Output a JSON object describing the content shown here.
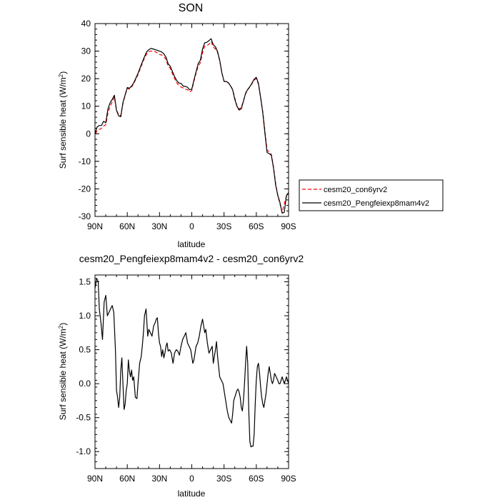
{
  "chart_data": [
    {
      "type": "line",
      "title": "SON",
      "xlabel": "latitude",
      "ylabel": "Surf sensible heat (W/m",
      "ylabel_sup": "2",
      "ylabel_close": ")",
      "xlim": [
        90,
        -90
      ],
      "ylim": [
        -30,
        40
      ],
      "x_ticks": [
        {
          "value": 90,
          "label": "90N"
        },
        {
          "value": 60,
          "label": "60N"
        },
        {
          "value": 30,
          "label": "30N"
        },
        {
          "value": 0,
          "label": "0"
        },
        {
          "value": -30,
          "label": "30S"
        },
        {
          "value": -60,
          "label": "60S"
        },
        {
          "value": -90,
          "label": "90S"
        }
      ],
      "y_ticks": [
        -30,
        -20,
        -10,
        0,
        10,
        20,
        30,
        40
      ],
      "legend": "right",
      "grid": false,
      "series": [
        {
          "name": "cesm20_con6yrv2",
          "color": "#ff0000",
          "dash": "dashed",
          "x": [
            90,
            88,
            86,
            84,
            82,
            80,
            78,
            76,
            74,
            72,
            70,
            68,
            66,
            64,
            62,
            60,
            58,
            56,
            54,
            52,
            50,
            48,
            46,
            44,
            42,
            40,
            38,
            36,
            34,
            32,
            30,
            28,
            26,
            24,
            22,
            20,
            18,
            16,
            14,
            12,
            10,
            8,
            6,
            4,
            2,
            0,
            -2,
            -4,
            -6,
            -8,
            -10,
            -12,
            -14,
            -16,
            -18,
            -20,
            -22,
            -24,
            -26,
            -28,
            -30,
            -32,
            -34,
            -36,
            -38,
            -40,
            -42,
            -44,
            -46,
            -48,
            -50,
            -52,
            -54,
            -56,
            -58,
            -60,
            -62,
            -64,
            -66,
            -68,
            -70,
            -72,
            -74,
            -76,
            -78,
            -80,
            -82,
            -84,
            -86,
            -88,
            -90
          ],
          "y": [
            0.0,
            1.0,
            1.6,
            2.0,
            2.8,
            3.3,
            7.5,
            10.0,
            11.5,
            13.3,
            8.5,
            7.0,
            6.5,
            11.0,
            14.0,
            16.5,
            16.2,
            17.0,
            18.2,
            19.8,
            21.5,
            23.5,
            25.5,
            27.5,
            29.0,
            29.8,
            30.0,
            30.1,
            29.8,
            29.3,
            28.8,
            28.6,
            28.0,
            27.0,
            24.5,
            23.8,
            21.8,
            20.0,
            18.5,
            17.5,
            17.0,
            16.6,
            16.2,
            16.0,
            15.2,
            15.7,
            19.0,
            22.0,
            24.5,
            25.8,
            29.5,
            31.8,
            32.0,
            32.5,
            33.5,
            31.5,
            30.8,
            29.5,
            26.5,
            22.0,
            19.0,
            18.7,
            18.5,
            17.5,
            16.0,
            13.0,
            10.2,
            9.0,
            9.5,
            12.0,
            14.5,
            16.0,
            17.0,
            18.2,
            19.5,
            20.0,
            18.0,
            13.0,
            8.0,
            1.0,
            -6.0,
            -6.5,
            -7.5,
            -12.0,
            -18.0,
            -22.5,
            -25.5,
            -28.5,
            -25.5,
            -22.5,
            -21.5
          ]
        },
        {
          "name": "cesm20_Pengfeiexp8mam4v2",
          "color": "#000000",
          "dash": "solid",
          "x": [
            90,
            88,
            86,
            84,
            82,
            80,
            78,
            76,
            74,
            72,
            70,
            68,
            66,
            64,
            62,
            60,
            58,
            56,
            54,
            52,
            50,
            48,
            46,
            44,
            42,
            40,
            38,
            36,
            34,
            32,
            30,
            28,
            26,
            24,
            22,
            20,
            18,
            16,
            14,
            12,
            10,
            8,
            6,
            4,
            2,
            0,
            -2,
            -4,
            -6,
            -8,
            -10,
            -12,
            -14,
            -16,
            -18,
            -20,
            -22,
            -24,
            -26,
            -28,
            -30,
            -32,
            -34,
            -36,
            -38,
            -40,
            -42,
            -44,
            -46,
            -48,
            -50,
            -52,
            -54,
            -56,
            -58,
            -60,
            -62,
            -64,
            -66,
            -68,
            -70,
            -72,
            -74,
            -76,
            -78,
            -80,
            -82,
            -84,
            -86,
            -88,
            -90
          ],
          "y": [
            0.0,
            2.5,
            3.0,
            3.0,
            4.5,
            4.0,
            9.0,
            11.2,
            12.5,
            14.0,
            8.5,
            6.5,
            6.2,
            11.3,
            14.1,
            16.8,
            16.5,
            17.3,
            18.5,
            20.2,
            21.9,
            24.0,
            26.0,
            28.0,
            29.7,
            30.5,
            31.0,
            30.8,
            30.5,
            30.3,
            30.0,
            29.7,
            29.0,
            27.8,
            25.4,
            24.5,
            22.6,
            20.8,
            19.3,
            18.4,
            18.3,
            17.3,
            17.2,
            16.9,
            16.0,
            16.2,
            19.5,
            22.5,
            25.5,
            26.7,
            30.8,
            33.0,
            33.2,
            33.8,
            34.5,
            32.3,
            31.6,
            29.8,
            26.7,
            22.0,
            19.0,
            19.0,
            18.5,
            17.4,
            16.0,
            12.5,
            10.0,
            8.6,
            9.1,
            11.8,
            14.7,
            16.1,
            17.1,
            18.4,
            19.8,
            20.5,
            18.3,
            13.2,
            7.6,
            0.2,
            -6.8,
            -7.2,
            -7.8,
            -12.4,
            -18.6,
            -22.3,
            -25.0,
            -28.8,
            -28.5,
            -22.5,
            -21.3
          ]
        }
      ]
    },
    {
      "type": "line",
      "title": "cesm20_Pengfeiexp8mam4v2 - cesm20_con6yrv2",
      "xlabel": "latitude",
      "ylabel": "Surf sensible heat (W/m",
      "ylabel_sup": "2",
      "ylabel_close": ")",
      "xlim": [
        90,
        -90
      ],
      "ylim": [
        -1.25,
        1.6
      ],
      "x_ticks": [
        {
          "value": 90,
          "label": "90N"
        },
        {
          "value": 60,
          "label": "60N"
        },
        {
          "value": 30,
          "label": "30N"
        },
        {
          "value": 0,
          "label": "0"
        },
        {
          "value": -30,
          "label": "30S"
        },
        {
          "value": -60,
          "label": "60S"
        },
        {
          "value": -90,
          "label": "90S"
        }
      ],
      "y_ticks": [
        {
          "value": -1.0,
          "label": "-1.0"
        },
        {
          "value": -0.5,
          "label": "-0.5"
        },
        {
          "value": 0.0,
          "label": "0.0"
        },
        {
          "value": 0.5,
          "label": "0.5"
        },
        {
          "value": 1.0,
          "label": "1.0"
        },
        {
          "value": 1.5,
          "label": "1.5"
        }
      ],
      "grid": false,
      "series": [
        {
          "color": "#000000",
          "x": [
            90,
            88.5,
            87,
            86,
            84.5,
            83,
            81.5,
            80,
            78.5,
            77,
            75.5,
            74,
            72.5,
            71,
            70,
            69,
            68,
            67,
            66,
            65,
            64,
            63,
            62,
            61,
            60,
            59,
            58,
            57,
            56,
            55,
            54,
            52.5,
            51,
            50,
            48.5,
            47,
            46,
            45,
            44,
            42.5,
            41,
            40,
            38.5,
            37,
            35.5,
            34,
            33,
            32,
            31,
            30,
            29,
            28,
            27,
            26,
            25,
            24,
            23,
            22,
            20.5,
            19,
            17.5,
            16,
            14.5,
            13,
            11.5,
            10,
            8.5,
            7,
            5.5,
            4,
            2.5,
            1,
            0,
            -1,
            -2,
            -3,
            -4,
            -5.5,
            -7,
            -8.5,
            -10,
            -11,
            -12,
            -13,
            -14.5,
            -16,
            -17.5,
            -19,
            -20,
            -21,
            -22,
            -23,
            -24,
            -25,
            -26,
            -27.5,
            -29,
            -30,
            -31,
            -32,
            -33,
            -34.5,
            -36,
            -37,
            -38,
            -39,
            -40,
            -41,
            -42,
            -43,
            -44,
            -45,
            -46,
            -47,
            -48,
            -49,
            -50,
            -51,
            -52,
            -53,
            -54,
            -55,
            -56,
            -57,
            -58,
            -59,
            -60,
            -61,
            -62,
            -63,
            -64,
            -65,
            -66,
            -67,
            -68,
            -69,
            -70,
            -71,
            -72,
            -73,
            -74,
            -75,
            -76,
            -77,
            -78,
            -79,
            -80,
            -81,
            -82,
            -83,
            -84,
            -85,
            -86,
            -87,
            -88,
            -89,
            -90
          ],
          "y": [
            1.4,
            1.55,
            1.5,
            1.1,
            0.9,
            0.65,
            1.2,
            1.3,
            1.0,
            1.05,
            1.1,
            1.15,
            1.05,
            0.5,
            -0.1,
            -0.2,
            -0.35,
            -0.2,
            0.2,
            0.38,
            0.0,
            -0.38,
            -0.3,
            -0.1,
            0.0,
            0.35,
            0.18,
            0.1,
            0.2,
            0.05,
            0.1,
            -0.2,
            -0.22,
            0.0,
            0.3,
            0.4,
            0.55,
            0.75,
            1.0,
            1.1,
            0.7,
            0.8,
            0.75,
            0.7,
            0.85,
            0.9,
            0.95,
            0.97,
            0.75,
            0.6,
            0.55,
            0.4,
            0.5,
            0.38,
            0.45,
            0.55,
            0.6,
            0.48,
            0.5,
            0.45,
            0.3,
            0.45,
            0.5,
            0.48,
            0.42,
            0.55,
            0.65,
            0.7,
            0.75,
            0.6,
            0.55,
            0.5,
            0.4,
            0.3,
            0.35,
            0.45,
            0.55,
            0.6,
            0.7,
            0.85,
            0.95,
            0.85,
            0.75,
            0.8,
            0.6,
            0.45,
            0.5,
            0.55,
            0.3,
            0.4,
            0.5,
            0.62,
            0.4,
            0.25,
            0.1,
            0.05,
            0.0,
            -0.1,
            -0.2,
            -0.3,
            -0.4,
            -0.5,
            -0.55,
            -0.58,
            -0.45,
            -0.25,
            -0.2,
            -0.15,
            -0.1,
            -0.08,
            -0.12,
            -0.2,
            -0.35,
            -0.4,
            -0.25,
            0.0,
            0.3,
            0.55,
            0.3,
            -0.4,
            -0.85,
            -0.93,
            -0.92,
            -0.92,
            -0.75,
            -0.3,
            0.05,
            0.25,
            0.3,
            0.15,
            -0.05,
            -0.2,
            -0.3,
            -0.35,
            -0.25,
            -0.15,
            0.0,
            0.15,
            0.25,
            0.15,
            0.05,
            0.0,
            0.05,
            0.15,
            0.12,
            0.08,
            0.05,
            0.0,
            0.0,
            0.05,
            0.1,
            0.05,
            0.0,
            0.05,
            0.1,
            0.05,
            0.0
          ]
        }
      ]
    }
  ]
}
